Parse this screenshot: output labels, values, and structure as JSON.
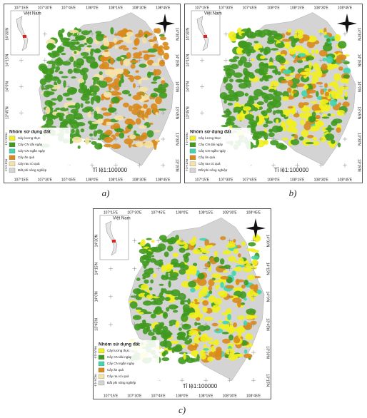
{
  "map": {
    "lon_labels": [
      "107°15'E",
      "107°30'E",
      "107°45'E",
      "108°0'E",
      "108°15'E",
      "108°30'E",
      "108°45'E"
    ],
    "lat_labels": [
      "14°30'N",
      "14°15'N",
      "14°0'N",
      "13°45'N",
      "13°30'N",
      "13°15'N"
    ],
    "inset_label": "Việt Nam",
    "legend": {
      "title": "Nhóm sử dụng đất",
      "items": [
        {
          "label": "Cây lương thực",
          "color": "#f2f01e"
        },
        {
          "label": "Cây CN dài ngày",
          "color": "#3f9a1f"
        },
        {
          "label": "Cây CN ngắn ngày",
          "color": "#3fd6b0"
        },
        {
          "label": "Cây ăn quả",
          "color": "#d98a1c"
        },
        {
          "label": "Cây rau củ quả",
          "color": "#f7e3a6"
        },
        {
          "label": "Đất phi nông nghiệp",
          "color": "#d4d4d4"
        }
      ]
    },
    "scale": "Tỉ lệ1:100000"
  },
  "panels": [
    {
      "caption": "a)"
    },
    {
      "caption": "b)"
    },
    {
      "caption": "c)"
    }
  ]
}
